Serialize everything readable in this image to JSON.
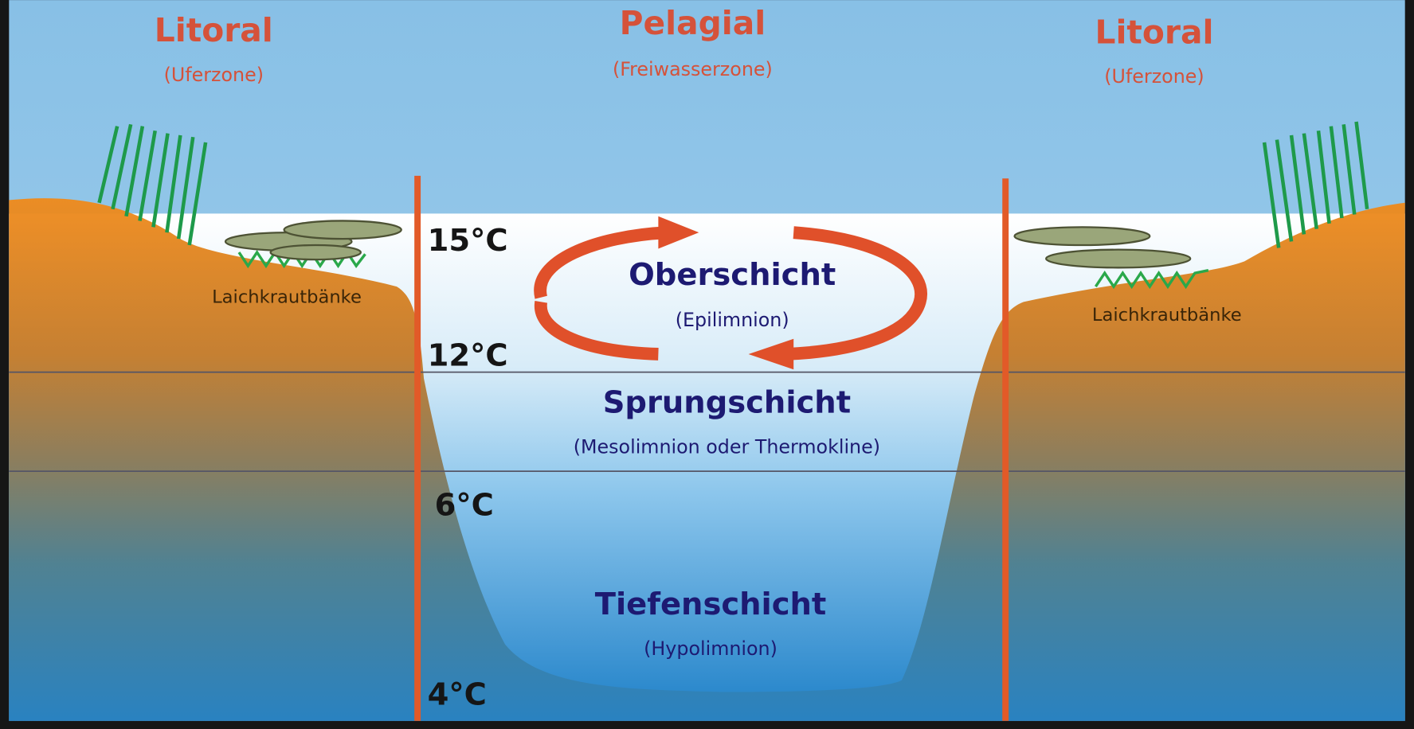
{
  "zones": [
    {
      "title": "Litoral",
      "subtitle": "(Uferzone)"
    },
    {
      "title": "Pelagial",
      "subtitle": "(Freiwasserzone)"
    },
    {
      "title": "Litoral",
      "subtitle": "(Uferzone)"
    }
  ],
  "layers": [
    {
      "title": "Oberschicht",
      "subtitle": "(Epilimnion)"
    },
    {
      "title": "Sprungschicht",
      "subtitle": "(Mesolimnion oder Thermokline)"
    },
    {
      "title": "Tiefenschicht",
      "subtitle": "(Hypolimnion)"
    }
  ],
  "temperatures": [
    "15°C",
    "12°C",
    "6°C",
    "4°C"
  ],
  "banks": [
    "Laichkrautbänke",
    "Laichkrautbänke"
  ]
}
